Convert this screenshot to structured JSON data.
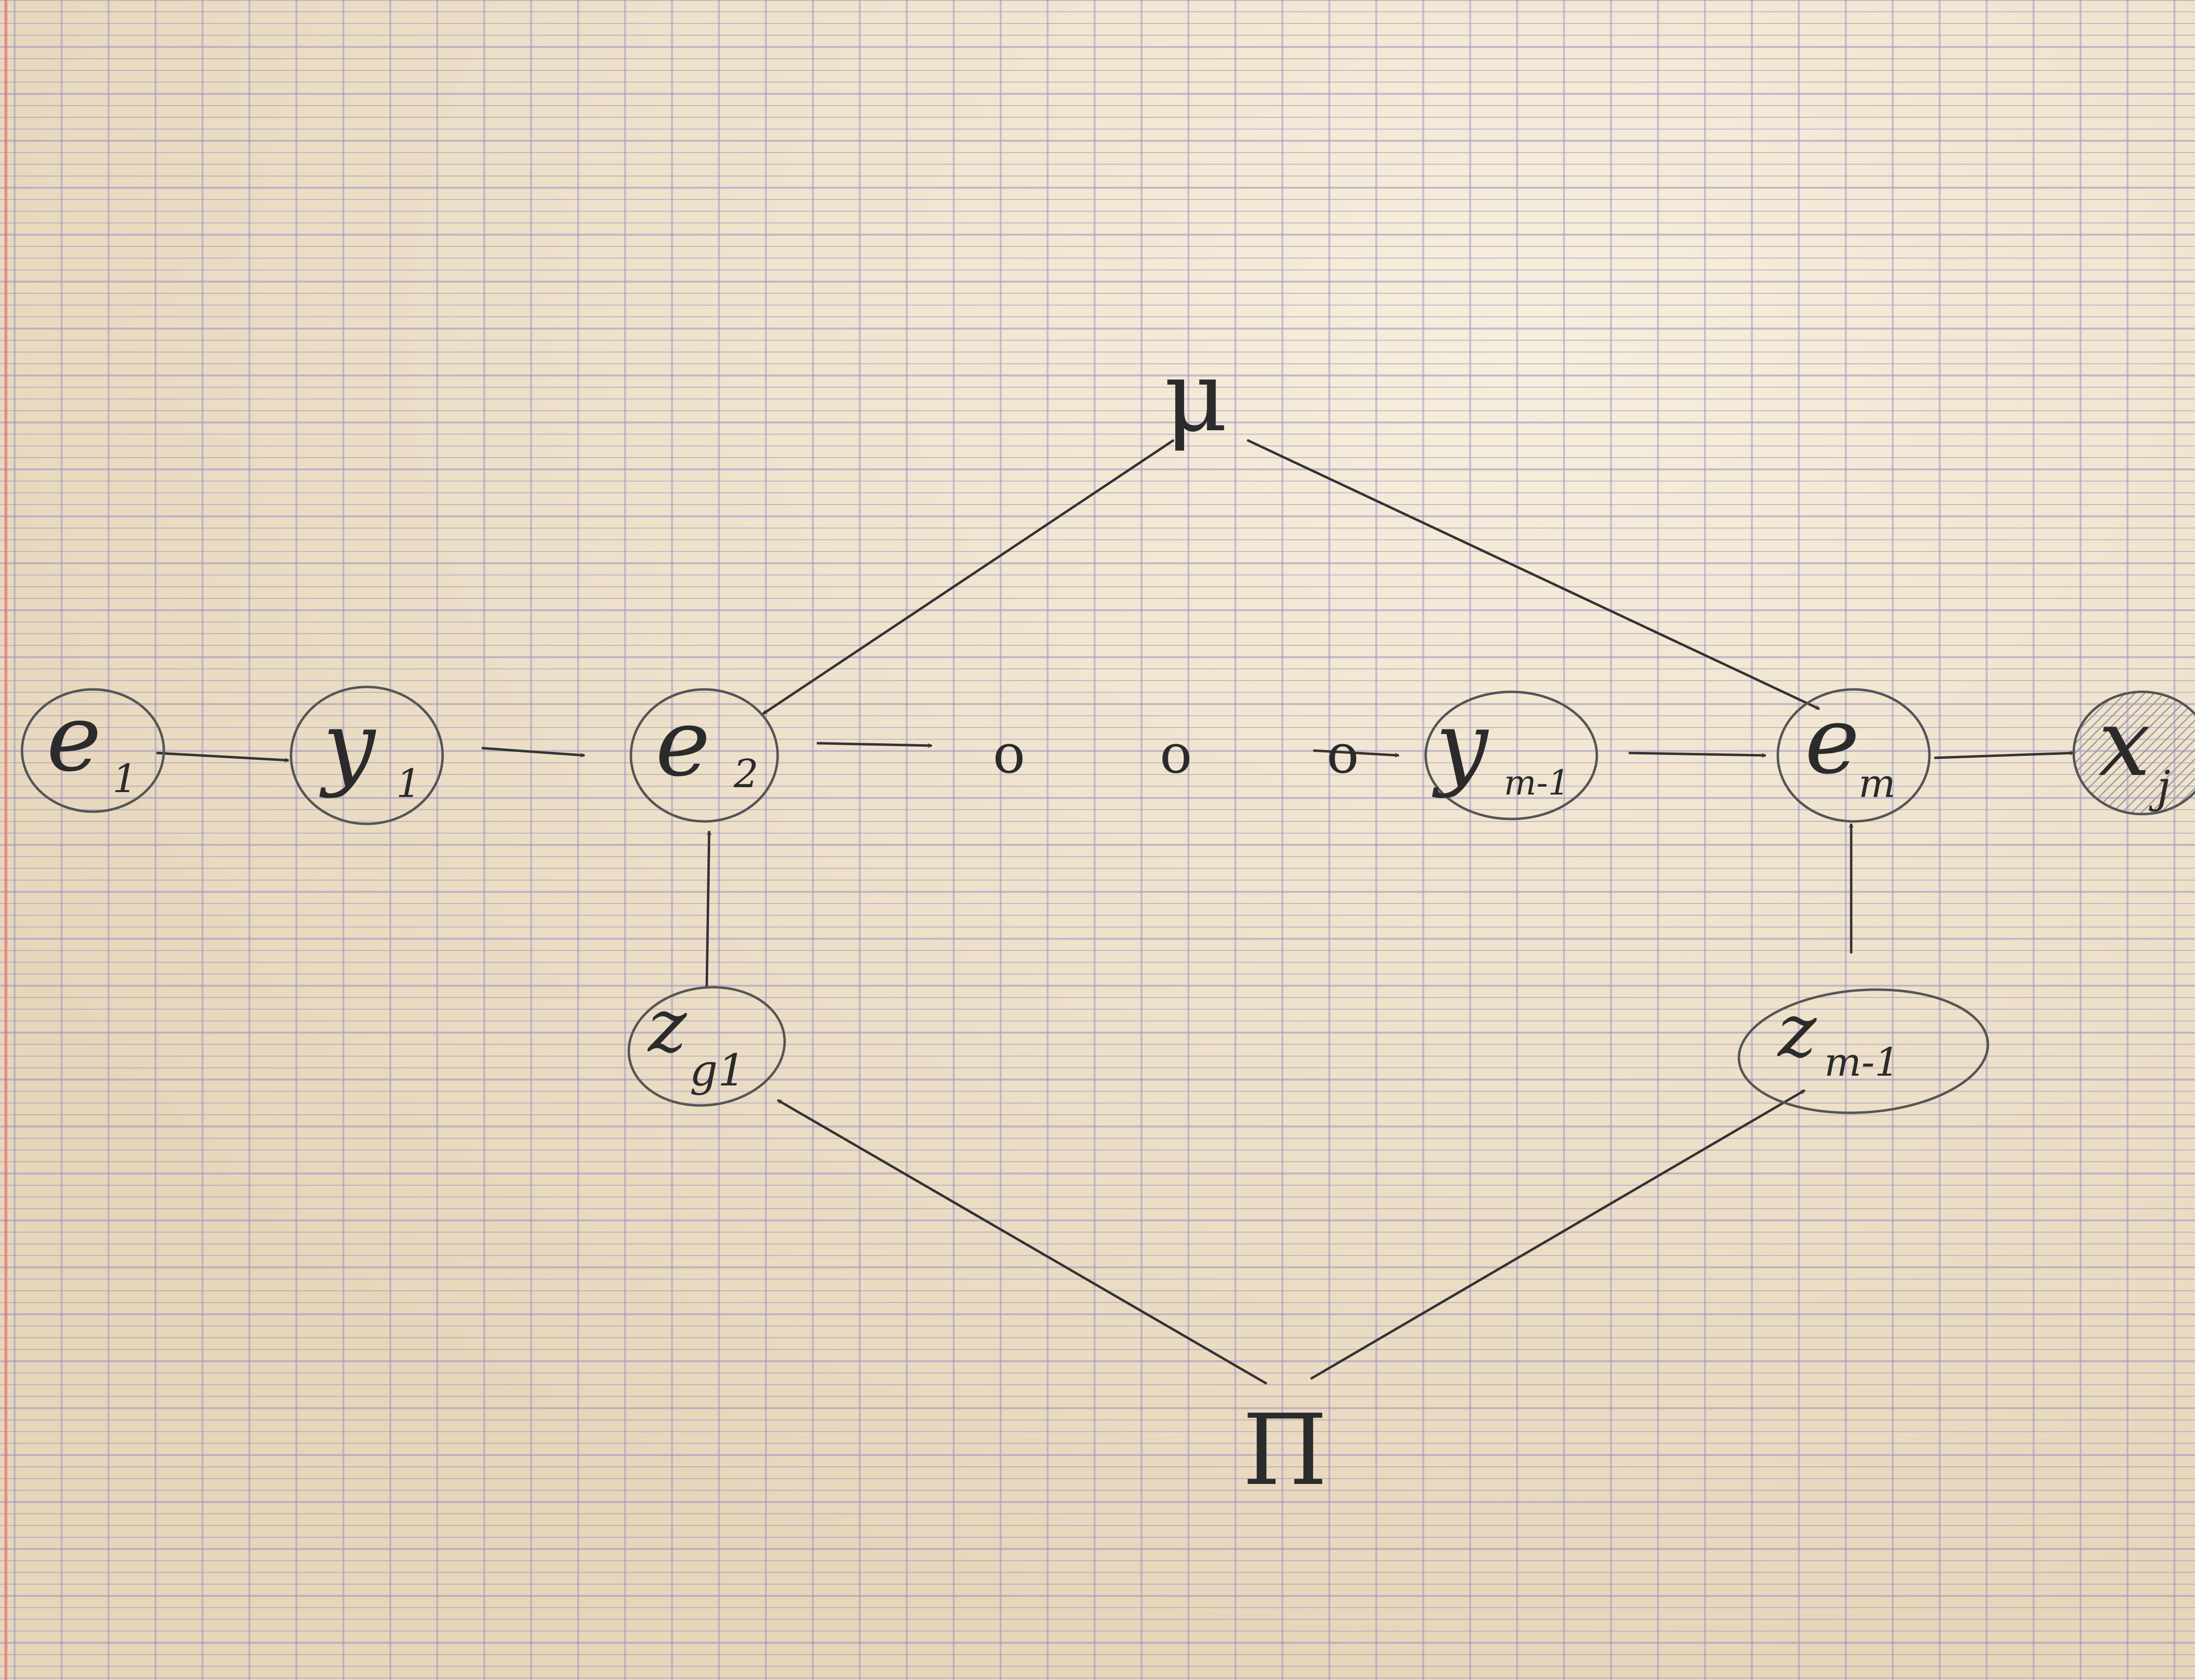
{
  "diagram": {
    "nodes": [
      {
        "id": "e1",
        "main": "e",
        "sub": "1",
        "shaded": false
      },
      {
        "id": "y1",
        "main": "y",
        "sub": "1",
        "shaded": false
      },
      {
        "id": "e2",
        "main": "e",
        "sub": "2",
        "shaded": false
      },
      {
        "id": "ym1",
        "main": "y",
        "sub": "m-1",
        "shaded": false
      },
      {
        "id": "em",
        "main": "e",
        "sub": "m",
        "shaded": false
      },
      {
        "id": "xj",
        "main": "x",
        "sub": "j",
        "shaded": true
      },
      {
        "id": "zg1",
        "main": "z",
        "sub": "g1",
        "shaded": false
      },
      {
        "id": "zm1",
        "main": "z",
        "sub": "m-1",
        "shaded": false
      }
    ],
    "parameters": {
      "mu": "μ",
      "pi": "Π"
    },
    "ellipsis": "o o o",
    "edges": [
      [
        "e1",
        "y1"
      ],
      [
        "y1",
        "e2"
      ],
      [
        "e2",
        "dots"
      ],
      [
        "dots",
        "ym1"
      ],
      [
        "ym1",
        "em"
      ],
      [
        "em",
        "xj"
      ],
      [
        "mu",
        "e2"
      ],
      [
        "mu",
        "em"
      ],
      [
        "zg1",
        "e2"
      ],
      [
        "zm1",
        "em"
      ],
      [
        "pi",
        "zg1"
      ],
      [
        "pi",
        "zm1"
      ]
    ]
  },
  "colors": {
    "paper": "#efe3cc",
    "grid": "#9d93c4",
    "margin": "#e6706f",
    "ink": "#2b2b2b",
    "shading": "#9a9a9a"
  }
}
